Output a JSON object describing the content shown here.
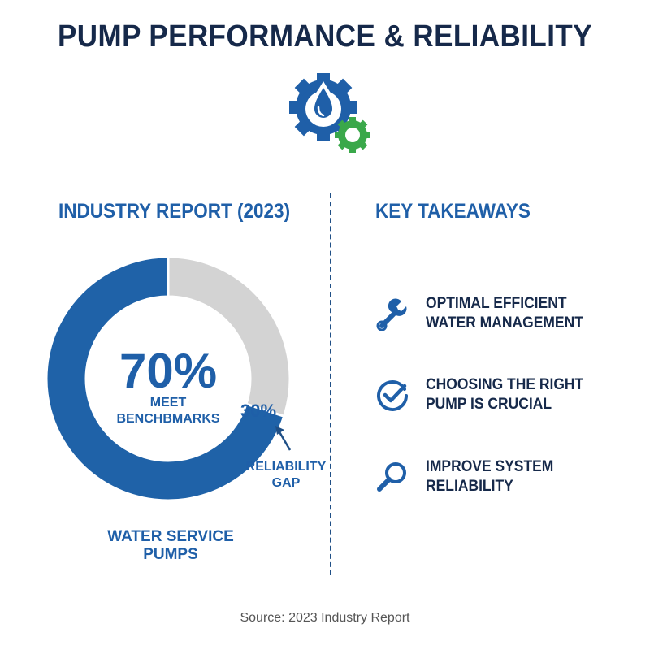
{
  "title": "PUMP PERFORMANCE & RELIABILITY",
  "header_icon": "water-drop-gear-icon",
  "left": {
    "heading": "INDUSTRY REPORT (2023)",
    "footer_label": "WATER SERVICE PUMPS"
  },
  "right": {
    "heading": "KEY TAKEAWAYS",
    "items": [
      {
        "icon": "wrench-icon",
        "line1": "OPTIMAL EFFICIENT",
        "line2": "WATER MANAGEMENT"
      },
      {
        "icon": "check-circle-icon",
        "line1": "CHOOSING THE RIGHT",
        "line2": "PUMP IS CRUCIAL"
      },
      {
        "icon": "magnifier-icon",
        "line1": "IMPROVE SYSTEM",
        "line2": "RELIABILITY"
      }
    ]
  },
  "chart_data": {
    "type": "pie",
    "variant": "donut",
    "slices": [
      {
        "label": "MEET BENCHBMARKS",
        "value": 70,
        "display": "70%",
        "color": "#1f62a8"
      },
      {
        "label": "RELIABILITY GAP",
        "value": 30,
        "display": "30%",
        "color": "#d3d3d3"
      }
    ],
    "center_value": "70%",
    "center_label_1": "MEET",
    "center_label_2": "BENCHBMARKS",
    "gap_value": "30%",
    "gap_label_1": "RELIABILITY",
    "gap_label_2": "GAP"
  },
  "colors": {
    "navy": "#16294a",
    "blue": "#1f5fa8",
    "green": "#3aa84a",
    "gray": "#d3d3d3"
  },
  "source": "Source: 2023 Industry Report"
}
